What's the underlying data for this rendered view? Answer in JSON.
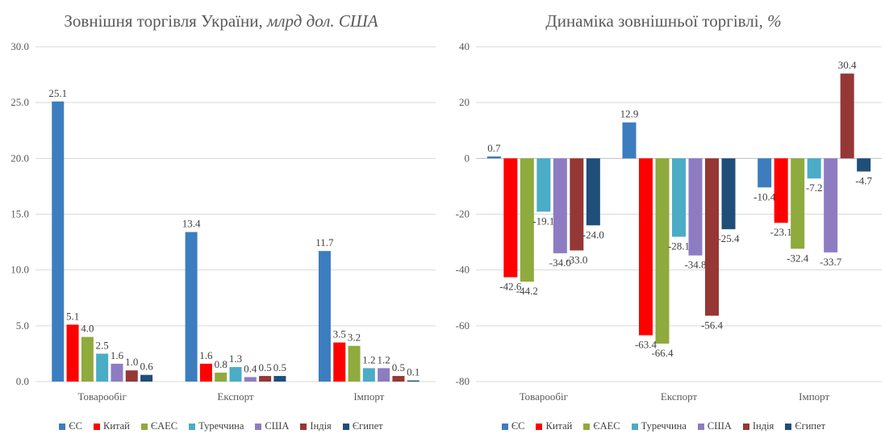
{
  "chart_data": [
    {
      "type": "bar",
      "title": "Зовнішня торгівля України,",
      "title_unit": "млрд дол. США",
      "categories": [
        "Товарообіг",
        "Експорт",
        "Імпорт"
      ],
      "ylim": [
        0,
        30
      ],
      "yticks": [
        "0.0",
        "5.0",
        "10.0",
        "15.0",
        "20.0",
        "25.0",
        "30.0"
      ],
      "grid": true,
      "legend_position": "bottom",
      "series": [
        {
          "name": "ЄС",
          "color": "#3C7DBF",
          "values": [
            25.1,
            13.4,
            11.7
          ],
          "labels": [
            "25.1",
            "13.4",
            "11.7"
          ]
        },
        {
          "name": "Китай",
          "color": "#FF0000",
          "values": [
            5.1,
            1.6,
            3.5
          ],
          "labels": [
            "5.1",
            "1.6",
            "3.5"
          ]
        },
        {
          "name": "ЄАЕС",
          "color": "#8FAA3D",
          "values": [
            4.0,
            0.8,
            3.2
          ],
          "labels": [
            "4.0",
            "0.8",
            "3.2"
          ]
        },
        {
          "name": "Туреччина",
          "color": "#4BACC6",
          "values": [
            2.5,
            1.3,
            1.2
          ],
          "labels": [
            "2.5",
            "1.3",
            "1.2"
          ]
        },
        {
          "name": "США",
          "color": "#8E7CC3",
          "values": [
            1.6,
            0.4,
            1.2
          ],
          "labels": [
            "1.6",
            "0.4",
            "1.2"
          ]
        },
        {
          "name": "Індія",
          "color": "#953735",
          "values": [
            1.0,
            0.5,
            0.5
          ],
          "labels": [
            "1.0",
            "0.5",
            "0.5"
          ]
        },
        {
          "name": "Єгипет",
          "color": "#1F4E79",
          "values": [
            0.6,
            0.5,
            0.1
          ],
          "labels": [
            "0.6",
            "0.5",
            "0.1"
          ]
        }
      ]
    },
    {
      "type": "bar",
      "title": "Динаміка зовнішньої торгівлі,",
      "title_unit": "%",
      "categories": [
        "Товарообіг",
        "Експорт",
        "Імпорт"
      ],
      "ylim": [
        -80,
        40
      ],
      "yticks": [
        "-80",
        "-60",
        "-40",
        "-20",
        "0",
        "20",
        "40"
      ],
      "grid": true,
      "legend_position": "bottom",
      "series": [
        {
          "name": "ЄС",
          "color": "#3C7DBF",
          "values": [
            0.7,
            12.9,
            -10.4
          ],
          "labels": [
            "0.7",
            "12.9",
            "-10.4"
          ]
        },
        {
          "name": "Китай",
          "color": "#FF0000",
          "values": [
            -42.6,
            -63.4,
            -23.1
          ],
          "labels": [
            "-42.6",
            "-63.4",
            "-23.1"
          ]
        },
        {
          "name": "ЄАЕС",
          "color": "#8FAA3D",
          "values": [
            -44.2,
            -66.4,
            -32.4
          ],
          "labels": [
            "-44.2",
            "-66.4",
            "-32.4"
          ]
        },
        {
          "name": "Туреччина",
          "color": "#4BACC6",
          "values": [
            -19.1,
            -28.1,
            -7.2
          ],
          "labels": [
            "-19.1",
            "-28.1",
            "-7.2"
          ]
        },
        {
          "name": "США",
          "color": "#8E7CC3",
          "values": [
            -34.0,
            -34.8,
            -33.7
          ],
          "labels": [
            "-34.0",
            "-34.8",
            "-33.7"
          ]
        },
        {
          "name": "Індія",
          "color": "#953735",
          "values": [
            -33.0,
            -56.4,
            30.4
          ],
          "labels": [
            "-33.0",
            "-56.4",
            "30.4"
          ]
        },
        {
          "name": "Єгипет",
          "color": "#1F4E79",
          "values": [
            -24.0,
            -25.4,
            -4.7
          ],
          "labels": [
            "-24.0",
            "-25.4",
            "-4.7"
          ]
        }
      ]
    }
  ]
}
